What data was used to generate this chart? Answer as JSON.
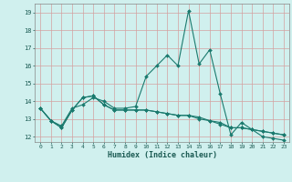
{
  "xlabel": "Humidex (Indice chaleur)",
  "ylabel": "",
  "bg_color": "#d0f0ee",
  "grid_color": "#d4a0a0",
  "line_color": "#1a7a6e",
  "xlim": [
    -0.5,
    23.5
  ],
  "ylim": [
    11.7,
    19.5
  ],
  "yticks": [
    12,
    13,
    14,
    15,
    16,
    17,
    18,
    19
  ],
  "xticks": [
    0,
    1,
    2,
    3,
    4,
    5,
    6,
    7,
    8,
    9,
    10,
    11,
    12,
    13,
    14,
    15,
    16,
    17,
    18,
    19,
    20,
    21,
    22,
    23
  ],
  "series1_x": [
    0,
    1,
    2,
    3,
    4,
    5,
    6,
    7,
    8,
    9,
    10,
    11,
    12,
    13,
    14,
    15,
    16,
    17,
    18,
    19,
    20,
    21,
    22,
    23
  ],
  "series1_y": [
    13.6,
    12.9,
    12.6,
    13.6,
    13.8,
    14.2,
    14.0,
    13.6,
    13.6,
    13.7,
    15.4,
    16.0,
    16.6,
    16.0,
    19.1,
    16.1,
    16.9,
    14.4,
    12.1,
    12.8,
    12.4,
    12.0,
    11.9,
    11.8
  ],
  "series2_x": [
    0,
    1,
    2,
    3,
    4,
    5,
    6,
    7,
    8,
    9,
    10,
    11,
    12,
    13,
    14,
    15,
    16,
    17,
    18,
    19,
    20,
    21,
    22,
    23
  ],
  "series2_y": [
    13.6,
    12.9,
    12.5,
    13.5,
    14.2,
    14.3,
    13.8,
    13.5,
    13.5,
    13.5,
    13.5,
    13.4,
    13.3,
    13.2,
    13.2,
    13.0,
    12.9,
    12.8,
    12.5,
    12.5,
    12.4,
    12.3,
    12.2,
    12.1
  ],
  "series3_x": [
    0,
    1,
    2,
    3,
    4,
    5,
    6,
    7,
    8,
    9,
    10,
    11,
    12,
    13,
    14,
    15,
    16,
    17,
    18,
    19,
    20,
    21,
    22,
    23
  ],
  "series3_y": [
    13.6,
    12.9,
    12.5,
    13.5,
    14.2,
    14.3,
    13.8,
    13.5,
    13.5,
    13.5,
    13.5,
    13.4,
    13.3,
    13.2,
    13.2,
    13.1,
    12.9,
    12.7,
    12.5,
    12.5,
    12.4,
    12.3,
    12.2,
    12.1
  ]
}
